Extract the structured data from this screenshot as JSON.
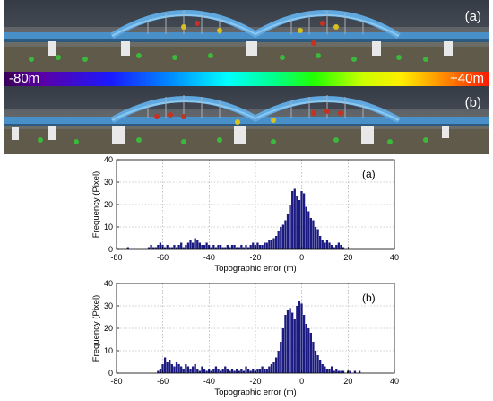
{
  "colorbar": {
    "min_label": "-80m",
    "max_label": "+40m"
  },
  "photos": [
    {
      "label": "(a)"
    },
    {
      "label": "(b)"
    }
  ],
  "chart_data": [
    {
      "type": "bar",
      "panel_label": "(a)",
      "xlabel": "Topographic error (m)",
      "ylabel": "Frequency (Pixel)",
      "xlim": [
        -80,
        40
      ],
      "ylim": [
        0,
        40
      ],
      "xticks": [
        -80,
        -60,
        -40,
        -20,
        0,
        20,
        40
      ],
      "yticks": [
        0,
        10,
        20,
        30,
        40
      ],
      "grid": true,
      "bar_color": "#1a1a80",
      "x": [
        -75,
        -74,
        -73,
        -72,
        -71,
        -70,
        -69,
        -68,
        -67,
        -66,
        -65,
        -64,
        -63,
        -62,
        -61,
        -60,
        -59,
        -58,
        -57,
        -56,
        -55,
        -54,
        -53,
        -52,
        -51,
        -50,
        -49,
        -48,
        -47,
        -46,
        -45,
        -44,
        -43,
        -42,
        -41,
        -40,
        -39,
        -38,
        -37,
        -36,
        -35,
        -34,
        -33,
        -32,
        -31,
        -30,
        -29,
        -28,
        -27,
        -26,
        -25,
        -24,
        -23,
        -22,
        -21,
        -20,
        -19,
        -18,
        -17,
        -16,
        -15,
        -14,
        -13,
        -12,
        -11,
        -10,
        -9,
        -8,
        -7,
        -6,
        -5,
        -4,
        -3,
        -2,
        -1,
        0,
        1,
        2,
        3,
        4,
        5,
        6,
        7,
        8,
        9,
        10,
        11,
        12,
        13,
        14,
        15,
        16,
        17,
        18
      ],
      "values": [
        1,
        0,
        0,
        0,
        0,
        0,
        0,
        0,
        0,
        1,
        2,
        1,
        1,
        2,
        3,
        2,
        1,
        2,
        1,
        1,
        2,
        1,
        2,
        3,
        1,
        2,
        3,
        4,
        3,
        5,
        4,
        3,
        2,
        2,
        3,
        2,
        1,
        2,
        1,
        2,
        2,
        1,
        1,
        2,
        1,
        2,
        2,
        1,
        1,
        2,
        1,
        2,
        1,
        2,
        3,
        2,
        3,
        2,
        2,
        3,
        3,
        4,
        4,
        5,
        6,
        8,
        10,
        11,
        13,
        16,
        20,
        26,
        27,
        24,
        22,
        26,
        25,
        19,
        17,
        14,
        13,
        10,
        9,
        6,
        4,
        3,
        4,
        3,
        2,
        1,
        2,
        3,
        2,
        1
      ]
    },
    {
      "type": "bar",
      "panel_label": "(b)",
      "xlabel": "Topographic error (m)",
      "ylabel": "Frequency (Pixel)",
      "xlim": [
        -80,
        40
      ],
      "ylim": [
        0,
        40
      ],
      "xticks": [
        -80,
        -60,
        -40,
        -20,
        0,
        20,
        40
      ],
      "yticks": [
        0,
        10,
        20,
        30,
        40
      ],
      "grid": true,
      "bar_color": "#1a1a80",
      "x": [
        -62,
        -61,
        -60,
        -59,
        -58,
        -57,
        -56,
        -55,
        -54,
        -53,
        -52,
        -51,
        -50,
        -49,
        -48,
        -47,
        -46,
        -45,
        -44,
        -43,
        -42,
        -41,
        -40,
        -39,
        -38,
        -37,
        -36,
        -35,
        -34,
        -33,
        -32,
        -31,
        -30,
        -29,
        -28,
        -27,
        -26,
        -25,
        -24,
        -23,
        -22,
        -21,
        -20,
        -19,
        -18,
        -17,
        -16,
        -15,
        -14,
        -13,
        -12,
        -11,
        -10,
        -9,
        -8,
        -7,
        -6,
        -5,
        -4,
        -3,
        -2,
        -1,
        0,
        1,
        2,
        3,
        4,
        5,
        6,
        7,
        8,
        9,
        10,
        11,
        12,
        13,
        14,
        15,
        16,
        17,
        18,
        19,
        20,
        21,
        22,
        23,
        24,
        25
      ],
      "values": [
        1,
        2,
        4,
        7,
        5,
        6,
        4,
        3,
        5,
        4,
        3,
        2,
        4,
        3,
        2,
        3,
        4,
        2,
        1,
        3,
        2,
        1,
        2,
        1,
        2,
        3,
        2,
        1,
        2,
        3,
        2,
        1,
        2,
        1,
        2,
        1,
        2,
        1,
        3,
        2,
        1,
        2,
        1,
        2,
        2,
        3,
        2,
        2,
        3,
        4,
        5,
        7,
        10,
        14,
        20,
        26,
        28,
        29,
        27,
        24,
        30,
        32,
        31,
        26,
        22,
        20,
        18,
        14,
        10,
        8,
        6,
        4,
        3,
        2,
        2,
        3,
        1,
        2,
        1,
        1,
        1,
        0,
        1,
        1,
        0,
        1,
        0,
        1
      ]
    }
  ]
}
